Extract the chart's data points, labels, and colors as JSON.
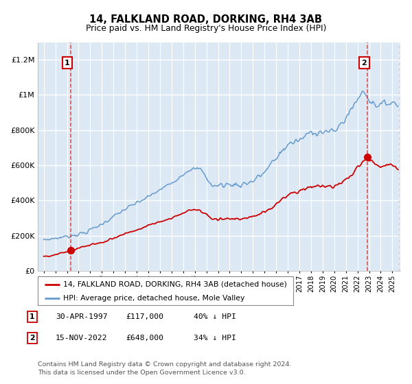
{
  "title": "14, FALKLAND ROAD, DORKING, RH4 3AB",
  "subtitle": "Price paid vs. HM Land Registry's House Price Index (HPI)",
  "ylim": [
    0,
    1300000
  ],
  "xlim_start": 1994.5,
  "xlim_end": 2025.7,
  "bg_color": "#dce9f5",
  "grid_color": "#ffffff",
  "red_line_color": "#cc0000",
  "blue_line_color": "#6699cc",
  "transaction_line_color": "#dd3333",
  "transaction_1_x": 1997.33,
  "transaction_1_y": 117000,
  "transaction_2_x": 2022.88,
  "transaction_2_y": 648000,
  "hatch_start": 2025.5,
  "legend_entries": [
    "14, FALKLAND ROAD, DORKING, RH4 3AB (detached house)",
    "HPI: Average price, detached house, Mole Valley"
  ],
  "footnote": "Contains HM Land Registry data © Crown copyright and database right 2024.\nThis data is licensed under the Open Government Licence v3.0.",
  "table_rows": [
    {
      "num": "1",
      "date": "30-APR-1997",
      "price": "£117,000",
      "rel": "40% ↓ HPI"
    },
    {
      "num": "2",
      "date": "15-NOV-2022",
      "price": "£648,000",
      "rel": "34% ↓ HPI"
    }
  ]
}
